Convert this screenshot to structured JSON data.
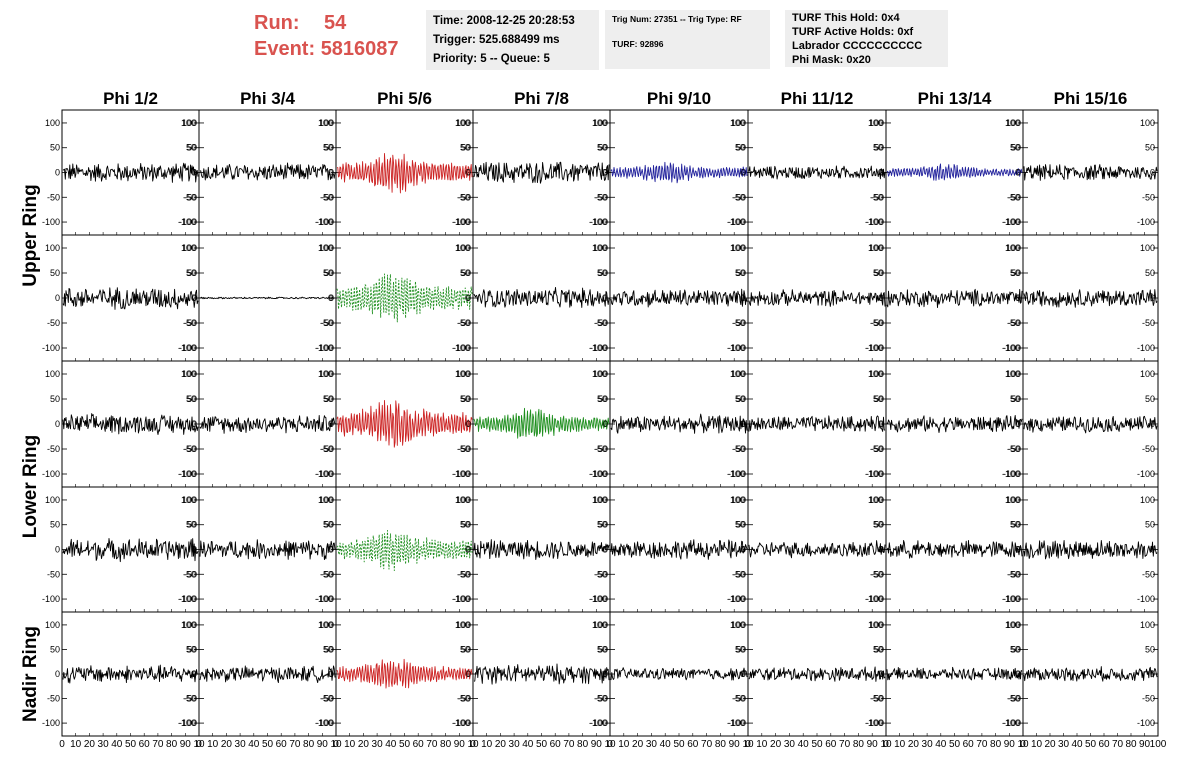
{
  "header": {
    "run_label": "Run:",
    "run_value": "54",
    "event_label": "Event:",
    "event_value": "5816087",
    "time": "Time: 2008-12-25 20:28:53",
    "trigger": "Trigger: 525.688499 ms",
    "priority": "Priority: 5 -- Queue: 5",
    "trig_num": "Trig Num: 27351 -- Trig Type: RF",
    "turf": "TURF: 92896",
    "turf_hold": "TURF This Hold: 0x4",
    "turf_active": "TURF Active Holds: 0xf",
    "labrador": "Labrador CCCCCCCCCC",
    "phi_mask": "Phi Mask: 0x20"
  },
  "colors": {
    "normal": "#000000",
    "red": "#cc2222",
    "blue": "#22229c",
    "green": "#1f8f1f"
  },
  "chart_data": {
    "type": "line",
    "columns": [
      "Phi 1/2",
      "Phi 3/4",
      "Phi 5/6",
      "Phi 7/8",
      "Phi 9/10",
      "Phi 11/12",
      "Phi 13/14",
      "Phi 15/16"
    ],
    "ring_labels": [
      "Upper Ring",
      "Lower Ring",
      "Nadir Ring"
    ],
    "rows_per_ring": [
      2,
      2,
      1
    ],
    "y_ticks": [
      -100,
      -50,
      0,
      50,
      100
    ],
    "ylim": [
      -110,
      110
    ],
    "xlim": [
      0,
      100
    ],
    "x_tick_labels": [
      [
        "0",
        "10",
        "20",
        "30",
        "40",
        "50",
        "60",
        "70",
        "80",
        "90",
        "10"
      ],
      [
        "0",
        "10",
        "20",
        "30",
        "40",
        "50",
        "60",
        "70",
        "80",
        "90",
        "10"
      ],
      [
        "0",
        "10",
        "20",
        "30",
        "40",
        "50",
        "60",
        "70",
        "80",
        "90",
        "10"
      ],
      [
        "0",
        "10",
        "20",
        "30",
        "40",
        "50",
        "60",
        "70",
        "80",
        "90",
        "10"
      ],
      [
        "0",
        "10",
        "20",
        "30",
        "40",
        "50",
        "60",
        "70",
        "80",
        "90",
        "10"
      ],
      [
        "0",
        "10",
        "20",
        "30",
        "40",
        "50",
        "60",
        "70",
        "80",
        "90",
        "10"
      ],
      [
        "0",
        "10",
        "20",
        "30",
        "40",
        "50",
        "60",
        "70",
        "80",
        "90",
        "10"
      ],
      [
        "0",
        "10",
        "20",
        "30",
        "40",
        "50",
        "60",
        "70",
        "80",
        "90",
        "100"
      ]
    ],
    "panels": [
      {
        "row": 0,
        "col": 0,
        "color": "normal",
        "style": "noise",
        "amplitude": 22
      },
      {
        "row": 0,
        "col": 1,
        "color": "normal",
        "style": "noise",
        "amplitude": 20
      },
      {
        "row": 0,
        "col": 2,
        "color": "red",
        "style": "pulse",
        "amplitude": 45
      },
      {
        "row": 0,
        "col": 3,
        "color": "normal",
        "style": "noise",
        "amplitude": 25
      },
      {
        "row": 0,
        "col": 4,
        "color": "blue",
        "style": "pulse",
        "amplitude": 25
      },
      {
        "row": 0,
        "col": 5,
        "color": "normal",
        "style": "noise",
        "amplitude": 15
      },
      {
        "row": 0,
        "col": 6,
        "color": "blue",
        "style": "pulse",
        "amplitude": 18
      },
      {
        "row": 0,
        "col": 7,
        "color": "normal",
        "style": "noise",
        "amplitude": 18
      },
      {
        "row": 1,
        "col": 0,
        "color": "normal",
        "style": "noise",
        "amplitude": 25
      },
      {
        "row": 1,
        "col": 1,
        "color": "normal",
        "style": "noise",
        "amplitude": 2
      },
      {
        "row": 1,
        "col": 2,
        "color": "green",
        "style": "pulse-dashed",
        "amplitude": 55
      },
      {
        "row": 1,
        "col": 3,
        "color": "normal",
        "style": "noise",
        "amplitude": 22
      },
      {
        "row": 1,
        "col": 4,
        "color": "normal",
        "style": "noise",
        "amplitude": 20
      },
      {
        "row": 1,
        "col": 5,
        "color": "normal",
        "style": "noise",
        "amplitude": 18
      },
      {
        "row": 1,
        "col": 6,
        "color": "normal",
        "style": "noise",
        "amplitude": 20
      },
      {
        "row": 1,
        "col": 7,
        "color": "normal",
        "style": "noise",
        "amplitude": 20
      },
      {
        "row": 2,
        "col": 0,
        "color": "normal",
        "style": "noise",
        "amplitude": 22
      },
      {
        "row": 2,
        "col": 1,
        "color": "normal",
        "style": "noise",
        "amplitude": 20
      },
      {
        "row": 2,
        "col": 2,
        "color": "red",
        "style": "pulse",
        "amplitude": 55
      },
      {
        "row": 2,
        "col": 3,
        "color": "green",
        "style": "pulse",
        "amplitude": 35
      },
      {
        "row": 2,
        "col": 4,
        "color": "normal",
        "style": "noise",
        "amplitude": 20
      },
      {
        "row": 2,
        "col": 5,
        "color": "normal",
        "style": "noise",
        "amplitude": 18
      },
      {
        "row": 2,
        "col": 6,
        "color": "normal",
        "style": "noise",
        "amplitude": 18
      },
      {
        "row": 2,
        "col": 7,
        "color": "normal",
        "style": "noise",
        "amplitude": 18
      },
      {
        "row": 3,
        "col": 0,
        "color": "normal",
        "style": "noise",
        "amplitude": 25
      },
      {
        "row": 3,
        "col": 1,
        "color": "normal",
        "style": "noise",
        "amplitude": 22
      },
      {
        "row": 3,
        "col": 2,
        "color": "green",
        "style": "pulse-dashed",
        "amplitude": 45
      },
      {
        "row": 3,
        "col": 3,
        "color": "normal",
        "style": "noise",
        "amplitude": 22
      },
      {
        "row": 3,
        "col": 4,
        "color": "normal",
        "style": "noise",
        "amplitude": 22
      },
      {
        "row": 3,
        "col": 5,
        "color": "normal",
        "style": "noise",
        "amplitude": 18
      },
      {
        "row": 3,
        "col": 6,
        "color": "normal",
        "style": "noise",
        "amplitude": 20
      },
      {
        "row": 3,
        "col": 7,
        "color": "normal",
        "style": "noise",
        "amplitude": 22
      },
      {
        "row": 4,
        "col": 0,
        "color": "normal",
        "style": "noise",
        "amplitude": 20
      },
      {
        "row": 4,
        "col": 1,
        "color": "normal",
        "style": "noise",
        "amplitude": 18
      },
      {
        "row": 4,
        "col": 2,
        "color": "red",
        "style": "pulse",
        "amplitude": 35
      },
      {
        "row": 4,
        "col": 3,
        "color": "normal",
        "style": "noise",
        "amplitude": 22
      },
      {
        "row": 4,
        "col": 4,
        "color": "normal",
        "style": "noise",
        "amplitude": 14
      },
      {
        "row": 4,
        "col": 5,
        "color": "normal",
        "style": "noise",
        "amplitude": 16
      },
      {
        "row": 4,
        "col": 6,
        "color": "normal",
        "style": "noise",
        "amplitude": 14
      },
      {
        "row": 4,
        "col": 7,
        "color": "normal",
        "style": "noise",
        "amplitude": 16
      }
    ]
  }
}
